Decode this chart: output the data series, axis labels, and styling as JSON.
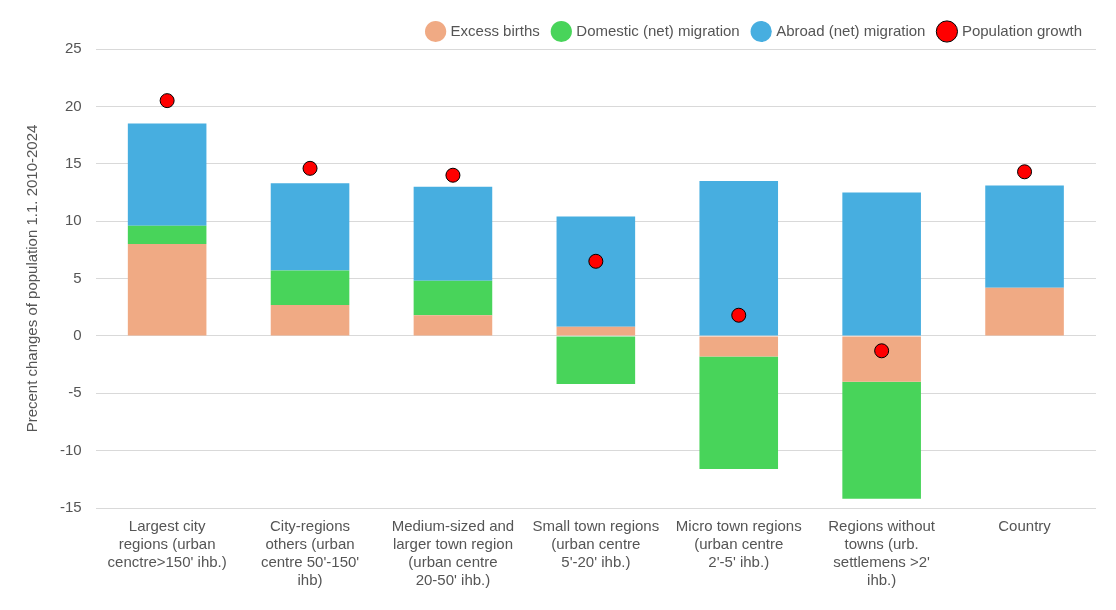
{
  "chart_data": {
    "type": "bar",
    "stacked": true,
    "ylabel": "Precent changes of population 1.1. 2010-2024",
    "categories": [
      "Largest city regions (urban cenctre>150' ihb.)",
      "City-regions others (urban centre 50'-150' ihb)",
      "Medium-sized and larger town region (urban centre 20-50' ihb.)",
      "Small town regions (urban centre 5'-20' ihb.)",
      "Micro town regions (urban centre 2'-5' ihb.)",
      "Regions without towns (urb. settlemens >2' ihb.)",
      "Country"
    ],
    "series": [
      {
        "name": "Excess births",
        "color": "#f0aa84",
        "values": [
          8.0,
          2.7,
          1.8,
          0.8,
          -1.8,
          -4.0,
          4.2
        ]
      },
      {
        "name": "Domestic (net) migration",
        "color": "#48d45a",
        "values": [
          1.6,
          3.0,
          3.0,
          -4.2,
          -9.8,
          -10.2,
          0
        ]
      },
      {
        "name": "Abroad (net) migration",
        "color": "#47aee0",
        "values": [
          8.9,
          7.6,
          8.2,
          9.6,
          13.5,
          12.5,
          8.9
        ]
      },
      {
        "name": "Population growth",
        "type": "scatter",
        "color": "#ff0000",
        "marker": "circle",
        "values": [
          20.5,
          14.6,
          14.0,
          6.5,
          1.8,
          -1.3,
          14.3
        ]
      }
    ],
    "ylim": [
      -15,
      25
    ],
    "yticks": [
      -15,
      -10,
      -5,
      0,
      5,
      10,
      15,
      20,
      25
    ],
    "grid": "y",
    "legend": "top right"
  }
}
